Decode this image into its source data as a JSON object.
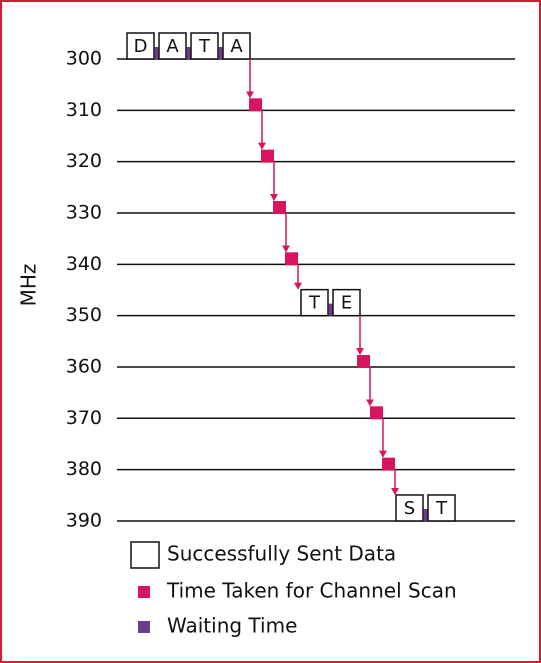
{
  "axis_label": "MHz",
  "ticks": [
    300,
    310,
    320,
    330,
    340,
    350,
    360,
    370,
    380,
    390
  ],
  "blocks": [
    {
      "letters": [
        "D",
        "A",
        "T",
        "A"
      ]
    },
    {
      "letters": [
        "T",
        "E"
      ]
    },
    {
      "letters": [
        "S",
        "T"
      ]
    }
  ],
  "legend": [
    {
      "label": "Successfully Sent Data"
    },
    {
      "label": "Time Taken for Channel Scan"
    },
    {
      "label": "Waiting Time"
    }
  ]
}
